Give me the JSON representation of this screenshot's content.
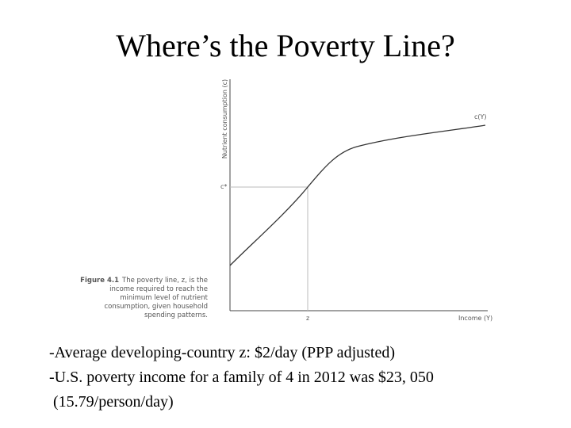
{
  "title": "Where’s the Poverty Line?",
  "figure": {
    "y_label": "Nutrient consumption (c)",
    "curve_label": "c(Y)",
    "threshold_label": "c*",
    "poverty_label": "z",
    "x_label": "Income (Y)",
    "caption_label": "Figure 4.1",
    "caption_lines": [
      "The poverty line, z, is the",
      "income required to reach the",
      "minimum level of nutrient",
      "consumption, given household",
      "spending patterns."
    ]
  },
  "bullets": [
    "-Average developing-country z: $2/day (PPP adjusted)",
    "-U.S. poverty income for a family of 4 in 2012 was $23, 050",
    " (15.79/person/day)"
  ]
}
